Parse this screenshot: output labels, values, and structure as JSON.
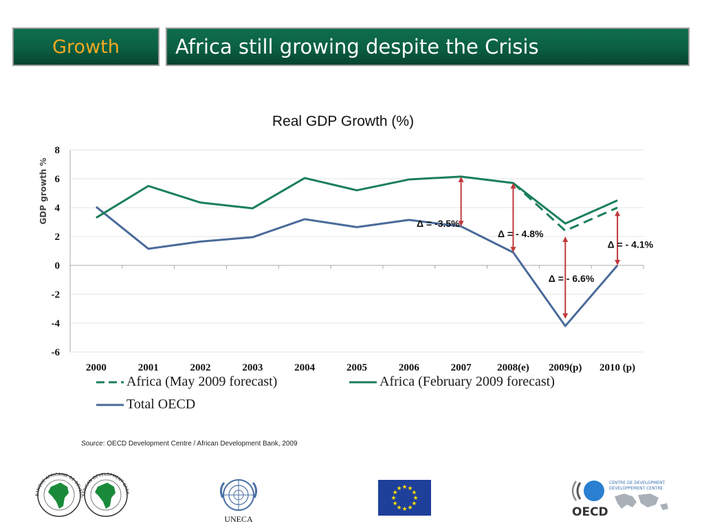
{
  "header": {
    "section": "Growth",
    "title": "Africa still growing despite the Crisis"
  },
  "chart_data": {
    "type": "line",
    "title": "Real GDP Growth (%)",
    "ylabel": "GDP growth %",
    "xlabel": "",
    "categories": [
      "2000",
      "2001",
      "2002",
      "2003",
      "2004",
      "2005",
      "2006",
      "2007",
      "2008(e)",
      "2009(p)",
      "2010 (p)"
    ],
    "ylim": [
      -6,
      8
    ],
    "yticks": [
      "8",
      "6",
      "4",
      "2",
      "0",
      "-2",
      "-4",
      "-6"
    ],
    "grid": true,
    "legend_position": "bottom",
    "series": [
      {
        "name": "Africa (May 2009 forecast)",
        "style": "dashed",
        "color": "#1a7f5a",
        "values": [
          null,
          null,
          null,
          null,
          null,
          null,
          null,
          null,
          5.7,
          2.4,
          4.0
        ]
      },
      {
        "name": "Africa (February 2009 forecast)",
        "style": "solid",
        "color": "#1a7f5a",
        "values": [
          3.3,
          5.5,
          4.35,
          3.95,
          6.05,
          5.2,
          5.95,
          6.15,
          5.7,
          2.9,
          4.5
        ]
      },
      {
        "name": "Total OECD",
        "style": "solid",
        "color": "#4a6a9a",
        "values": [
          4.05,
          1.15,
          1.65,
          1.95,
          3.2,
          2.65,
          3.15,
          2.7,
          0.9,
          -4.2,
          0.0
        ]
      }
    ],
    "annotations": [
      {
        "text": "Δ = -3.5%",
        "category": "2007",
        "from": 6.15,
        "to": 2.7
      },
      {
        "text": "Δ = - 4.8%",
        "category": "2008(e)",
        "from": 5.7,
        "to": 0.9
      },
      {
        "text": "Δ = - 6.6%",
        "category": "2009(p)",
        "from": 2.0,
        "to": -3.7
      },
      {
        "text": "Δ = - 4.1%",
        "category": "2010 (p)",
        "from": 3.8,
        "to": 0.0
      }
    ]
  },
  "source": {
    "label": "Source",
    "text": ": OECD Development Centre / African Development Bank, 2009"
  },
  "colors": {
    "header_bg": "#0b5f42",
    "section_text": "#f6a821",
    "africa": "#1a7f5a",
    "oecd": "#4a6a9a",
    "delta_arrow": "#c0393b"
  },
  "logos": {
    "uneca_label": "UNECA",
    "oecd_label": "OECD",
    "oecd_centre_line1": "CENTRE DE DEVELOPMENT",
    "oecd_centre_line2": "DEVELOPPEMENT CENTRE",
    "afdb_text": "BANQUE AFRICAINE DE DEVELOPPEMENT",
    "afdb_text2": "AFRICAN DEVELOPMENT BANK"
  }
}
